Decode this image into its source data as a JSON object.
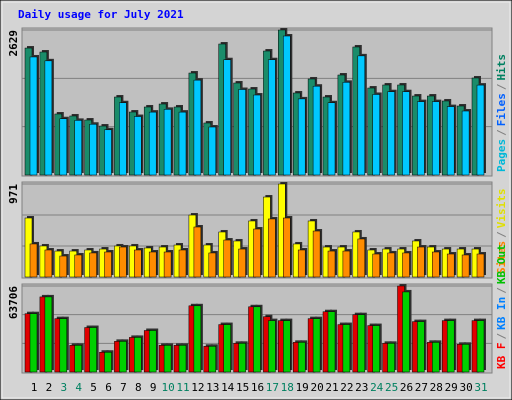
{
  "title": "Daily usage for July 2021",
  "legend_separator": "/",
  "chart_data": [
    {
      "type": "bar",
      "ylim": [
        0,
        2629
      ],
      "yticks": [
        2629
      ],
      "legend": [
        {
          "name": "Pages",
          "color": "#00b8d8"
        },
        {
          "name": "Files",
          "color": "#0060ff"
        },
        {
          "name": "Hits",
          "color": "#008060"
        }
      ],
      "series": [
        {
          "name": "Hits",
          "color": "#1a8c6a",
          "values": [
            2302,
            2230,
            1106,
            1070,
            997,
            888,
            1414,
            1142,
            1233,
            1287,
            1233,
            1849,
            943,
            2375,
            1668,
            1559,
            2248,
            2629,
            1487,
            1741,
            1414,
            1813,
            2321,
            1577,
            1632,
            1632,
            1432,
            1432,
            1342,
            1251,
            1759
          ]
        },
        {
          "name": "Files",
          "color": "#00c8ff",
          "values": [
            2140,
            2070,
            1020,
            990,
            920,
            820,
            1310,
            1060,
            1140,
            1190,
            1140,
            1720,
            870,
            2090,
            1550,
            1450,
            2090,
            2520,
            1380,
            1610,
            1310,
            1680,
            2160,
            1460,
            1510,
            1510,
            1330,
            1330,
            1240,
            1160,
            1630
          ]
        }
      ]
    },
    {
      "type": "bar",
      "ylim": [
        0,
        971
      ],
      "yticks": [
        971
      ],
      "legend": [
        {
          "name": "Sites",
          "color": "#ff8000"
        },
        {
          "name": "Visits",
          "color": "#e0e000"
        }
      ],
      "series": [
        {
          "name": "Visits",
          "color": "#ffff00",
          "values": [
            616,
            324,
            271,
            271,
            282,
            292,
            324,
            324,
            303,
            313,
            334,
            647,
            334,
            470,
            376,
            585,
            835,
            971,
            345,
            585,
            313,
            313,
            470,
            282,
            292,
            292,
            376,
            313,
            292,
            292,
            292
          ]
        },
        {
          "name": "Sites",
          "color": "#ff8c00",
          "values": [
            345,
            282,
            219,
            230,
            251,
            261,
            313,
            282,
            261,
            261,
            282,
            522,
            251,
            386,
            292,
            501,
            606,
            616,
            282,
            480,
            271,
            271,
            397,
            240,
            251,
            251,
            313,
            261,
            240,
            230,
            240
          ]
        }
      ]
    },
    {
      "type": "bar",
      "ylim": [
        0,
        63706
      ],
      "yticks": [
        63706
      ],
      "legend": [
        {
          "name": "KB F",
          "color": "#ff0000"
        },
        {
          "name": "KB In",
          "color": "#0080ff"
        },
        {
          "name": "KB Out",
          "color": "#00c000"
        }
      ],
      "categories": [
        "1",
        "2",
        "3",
        "4",
        "5",
        "6",
        "7",
        "8",
        "9",
        "10",
        "11",
        "12",
        "13",
        "14",
        "15",
        "16",
        "17",
        "18",
        "19",
        "20",
        "21",
        "22",
        "23",
        "24",
        "25",
        "26",
        "27",
        "28",
        "29",
        "30",
        "31"
      ],
      "category_colors": [
        "#000",
        "#000",
        "#008060",
        "#008060",
        "#000",
        "#000",
        "#000",
        "#000",
        "#000",
        "#008060",
        "#008060",
        "#000",
        "#000",
        "#000",
        "#000",
        "#000",
        "#008060",
        "#008060",
        "#000",
        "#000",
        "#000",
        "#000",
        "#000",
        "#008060",
        "#008060",
        "#000",
        "#000",
        "#000",
        "#000",
        "#000",
        "#008060"
      ],
      "series": [
        {
          "name": "KB F",
          "color": "#e00000",
          "values": [
            43190,
            55630,
            39530,
            19760,
            32940,
            14640,
            22690,
            25620,
            30740,
            19760,
            19760,
            49040,
            19030,
            35140,
            21230,
            48310,
            40990,
            38060,
            21960,
            39530,
            44650,
            35140,
            42460,
            34400,
            21230,
            63706,
            37330,
            21960,
            38060,
            20500,
            38060
          ]
        },
        {
          "name": "KB Out",
          "color": "#00d000",
          "values": [
            43190,
            55630,
            39530,
            19760,
            32940,
            14640,
            22690,
            25620,
            30740,
            19760,
            19760,
            49040,
            19030,
            35140,
            21230,
            48310,
            38060,
            38060,
            21960,
            39530,
            44650,
            35140,
            42460,
            34400,
            21230,
            59310,
            37330,
            21960,
            38060,
            20500,
            38060
          ]
        }
      ]
    }
  ]
}
